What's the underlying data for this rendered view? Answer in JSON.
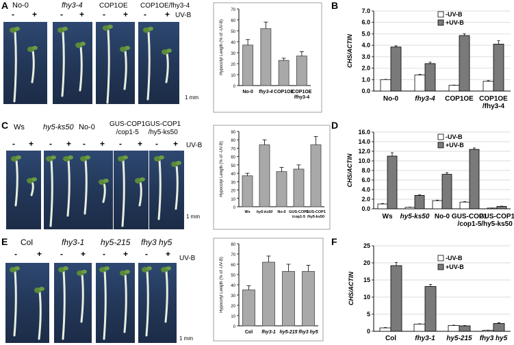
{
  "panels": {
    "A": {
      "letter": "A",
      "genotypes": [
        "No-0",
        "fhy3-4",
        "COP1OE",
        "COP1OE/fhy3-4"
      ],
      "treatment_labels": [
        "-",
        "+"
      ],
      "uvb_label": "UV-B",
      "scale_bar": "1 mm"
    },
    "C": {
      "letter": "C",
      "genotypes": [
        "Ws",
        "hy5-ks50",
        "No-0",
        "GUS-COP1\n/cop1-5",
        "GUS-COP1\n/hy5-ks50"
      ],
      "treatment_labels": [
        "-",
        "+"
      ],
      "uvb_label": "UV-B",
      "scale_bar": "1 mm"
    },
    "E": {
      "letter": "E",
      "genotypes": [
        "Col",
        "fhy3-1",
        "hy5-215",
        "fhy3 hy5"
      ],
      "treatment_labels": [
        "-",
        "+"
      ],
      "uvb_label": "UV-B",
      "scale_bar": "1 mm"
    },
    "B": {
      "letter": "B"
    },
    "D": {
      "letter": "D"
    },
    "F": {
      "letter": "F"
    }
  },
  "colors": {
    "photo_bg": "#253a5c",
    "bar_gray": "#a9a9a9",
    "bar_dark": "#7a7a7a",
    "bar_white": "#ffffff"
  },
  "chart_data": [
    {
      "id": "hypoA",
      "type": "bar",
      "ylabel": "Hypocotyl Length (% of -UV-B)",
      "ylim": [
        0,
        70
      ],
      "yticks": [
        0,
        10,
        20,
        30,
        40,
        50,
        60,
        70
      ],
      "categories": [
        "No-0",
        "fhy3-4",
        "COP1OE",
        "COP1OE\n/fhy3-4"
      ],
      "italic": [
        false,
        true,
        false,
        false
      ],
      "values": [
        37,
        52,
        23,
        27
      ],
      "errors": [
        5,
        6,
        2,
        4
      ]
    },
    {
      "id": "hypoC",
      "type": "bar",
      "ylabel": "Hypocotyl Length (% of -UV-B)",
      "ylim": [
        0,
        90
      ],
      "yticks": [
        0,
        10,
        20,
        30,
        40,
        50,
        60,
        70,
        80,
        90
      ],
      "categories": [
        "Ws",
        "hy5-ks50",
        "No-0",
        "GUS-COP1\n/cop1-5",
        "GUS-COP1\n/hy5-ks50"
      ],
      "italic": [
        false,
        true,
        false,
        false,
        false
      ],
      "values": [
        37,
        74,
        42,
        45,
        74
      ],
      "errors": [
        3,
        6,
        5,
        5,
        10
      ]
    },
    {
      "id": "hypoE",
      "type": "bar",
      "ylabel": "Hypocotyl Length (% of -UV-B)",
      "ylim": [
        0,
        80
      ],
      "yticks": [
        0,
        10,
        20,
        30,
        40,
        50,
        60,
        70,
        80
      ],
      "categories": [
        "Col",
        "fhy3-1",
        "hy5-215",
        "fhy3 hy5"
      ],
      "italic": [
        false,
        true,
        true,
        true
      ],
      "values": [
        35,
        62,
        53,
        53
      ],
      "errors": [
        4,
        6,
        7,
        6
      ]
    },
    {
      "id": "chsB",
      "type": "bar",
      "ylabel": "CHS/ACTIN",
      "ylim": [
        0,
        7
      ],
      "yticks": [
        "0.0",
        "1.0",
        "2.0",
        "3.0",
        "4.0",
        "5.0",
        "6.0",
        "7.0"
      ],
      "categories": [
        "No-0",
        "fhy3-4",
        "COP1OE",
        "COP1OE\n/fhy3-4"
      ],
      "italic": [
        false,
        true,
        false,
        false
      ],
      "series": [
        {
          "name": "-UV-B",
          "values": [
            1.0,
            1.4,
            0.5,
            0.85
          ],
          "errors": [
            0.02,
            0.05,
            0.02,
            0.06
          ]
        },
        {
          "name": "+UV-B",
          "values": [
            3.85,
            2.4,
            4.85,
            4.1
          ],
          "errors": [
            0.1,
            0.12,
            0.15,
            0.3
          ]
        }
      ]
    },
    {
      "id": "chsD",
      "type": "bar",
      "ylabel": "CHS/ACTIN",
      "ylim": [
        0,
        16
      ],
      "yticks": [
        "0.0",
        "2.0",
        "4.0",
        "6.0",
        "8.0",
        "10.0",
        "12.0",
        "14.0",
        "16.0"
      ],
      "categories": [
        "Ws",
        "hy5-ks50",
        "No-0",
        "GUS-COP1\n/cop1-5",
        "GUS-COP1\n/hy5-ks50"
      ],
      "italic": [
        false,
        true,
        false,
        false,
        false
      ],
      "series": [
        {
          "name": "-UV-B",
          "values": [
            1.0,
            0.3,
            1.7,
            1.4,
            0.15
          ],
          "errors": [
            0.1,
            0.05,
            0.1,
            0.1,
            0.02
          ]
        },
        {
          "name": "+UV-B",
          "values": [
            11.0,
            2.8,
            7.2,
            12.4,
            0.5
          ],
          "errors": [
            0.7,
            0.1,
            0.35,
            0.3,
            0.05
          ]
        }
      ]
    },
    {
      "id": "chsF",
      "type": "bar",
      "ylabel": "CHS/ACTIN",
      "ylim": [
        0,
        25
      ],
      "yticks": [
        "0",
        "5",
        "10",
        "15",
        "20",
        "25"
      ],
      "categories": [
        "Col",
        "fhy3-1",
        "hy5-215",
        "fhy3 hy5"
      ],
      "italic": [
        false,
        true,
        true,
        true
      ],
      "series": [
        {
          "name": "-UV-B",
          "values": [
            1.0,
            2.1,
            1.7,
            0.3
          ],
          "errors": [
            0.1,
            0.1,
            0.1,
            0.05
          ]
        },
        {
          "name": "+UV-B",
          "values": [
            19.2,
            13.1,
            1.6,
            2.3
          ],
          "errors": [
            0.9,
            0.6,
            0.1,
            0.2
          ]
        }
      ]
    }
  ]
}
